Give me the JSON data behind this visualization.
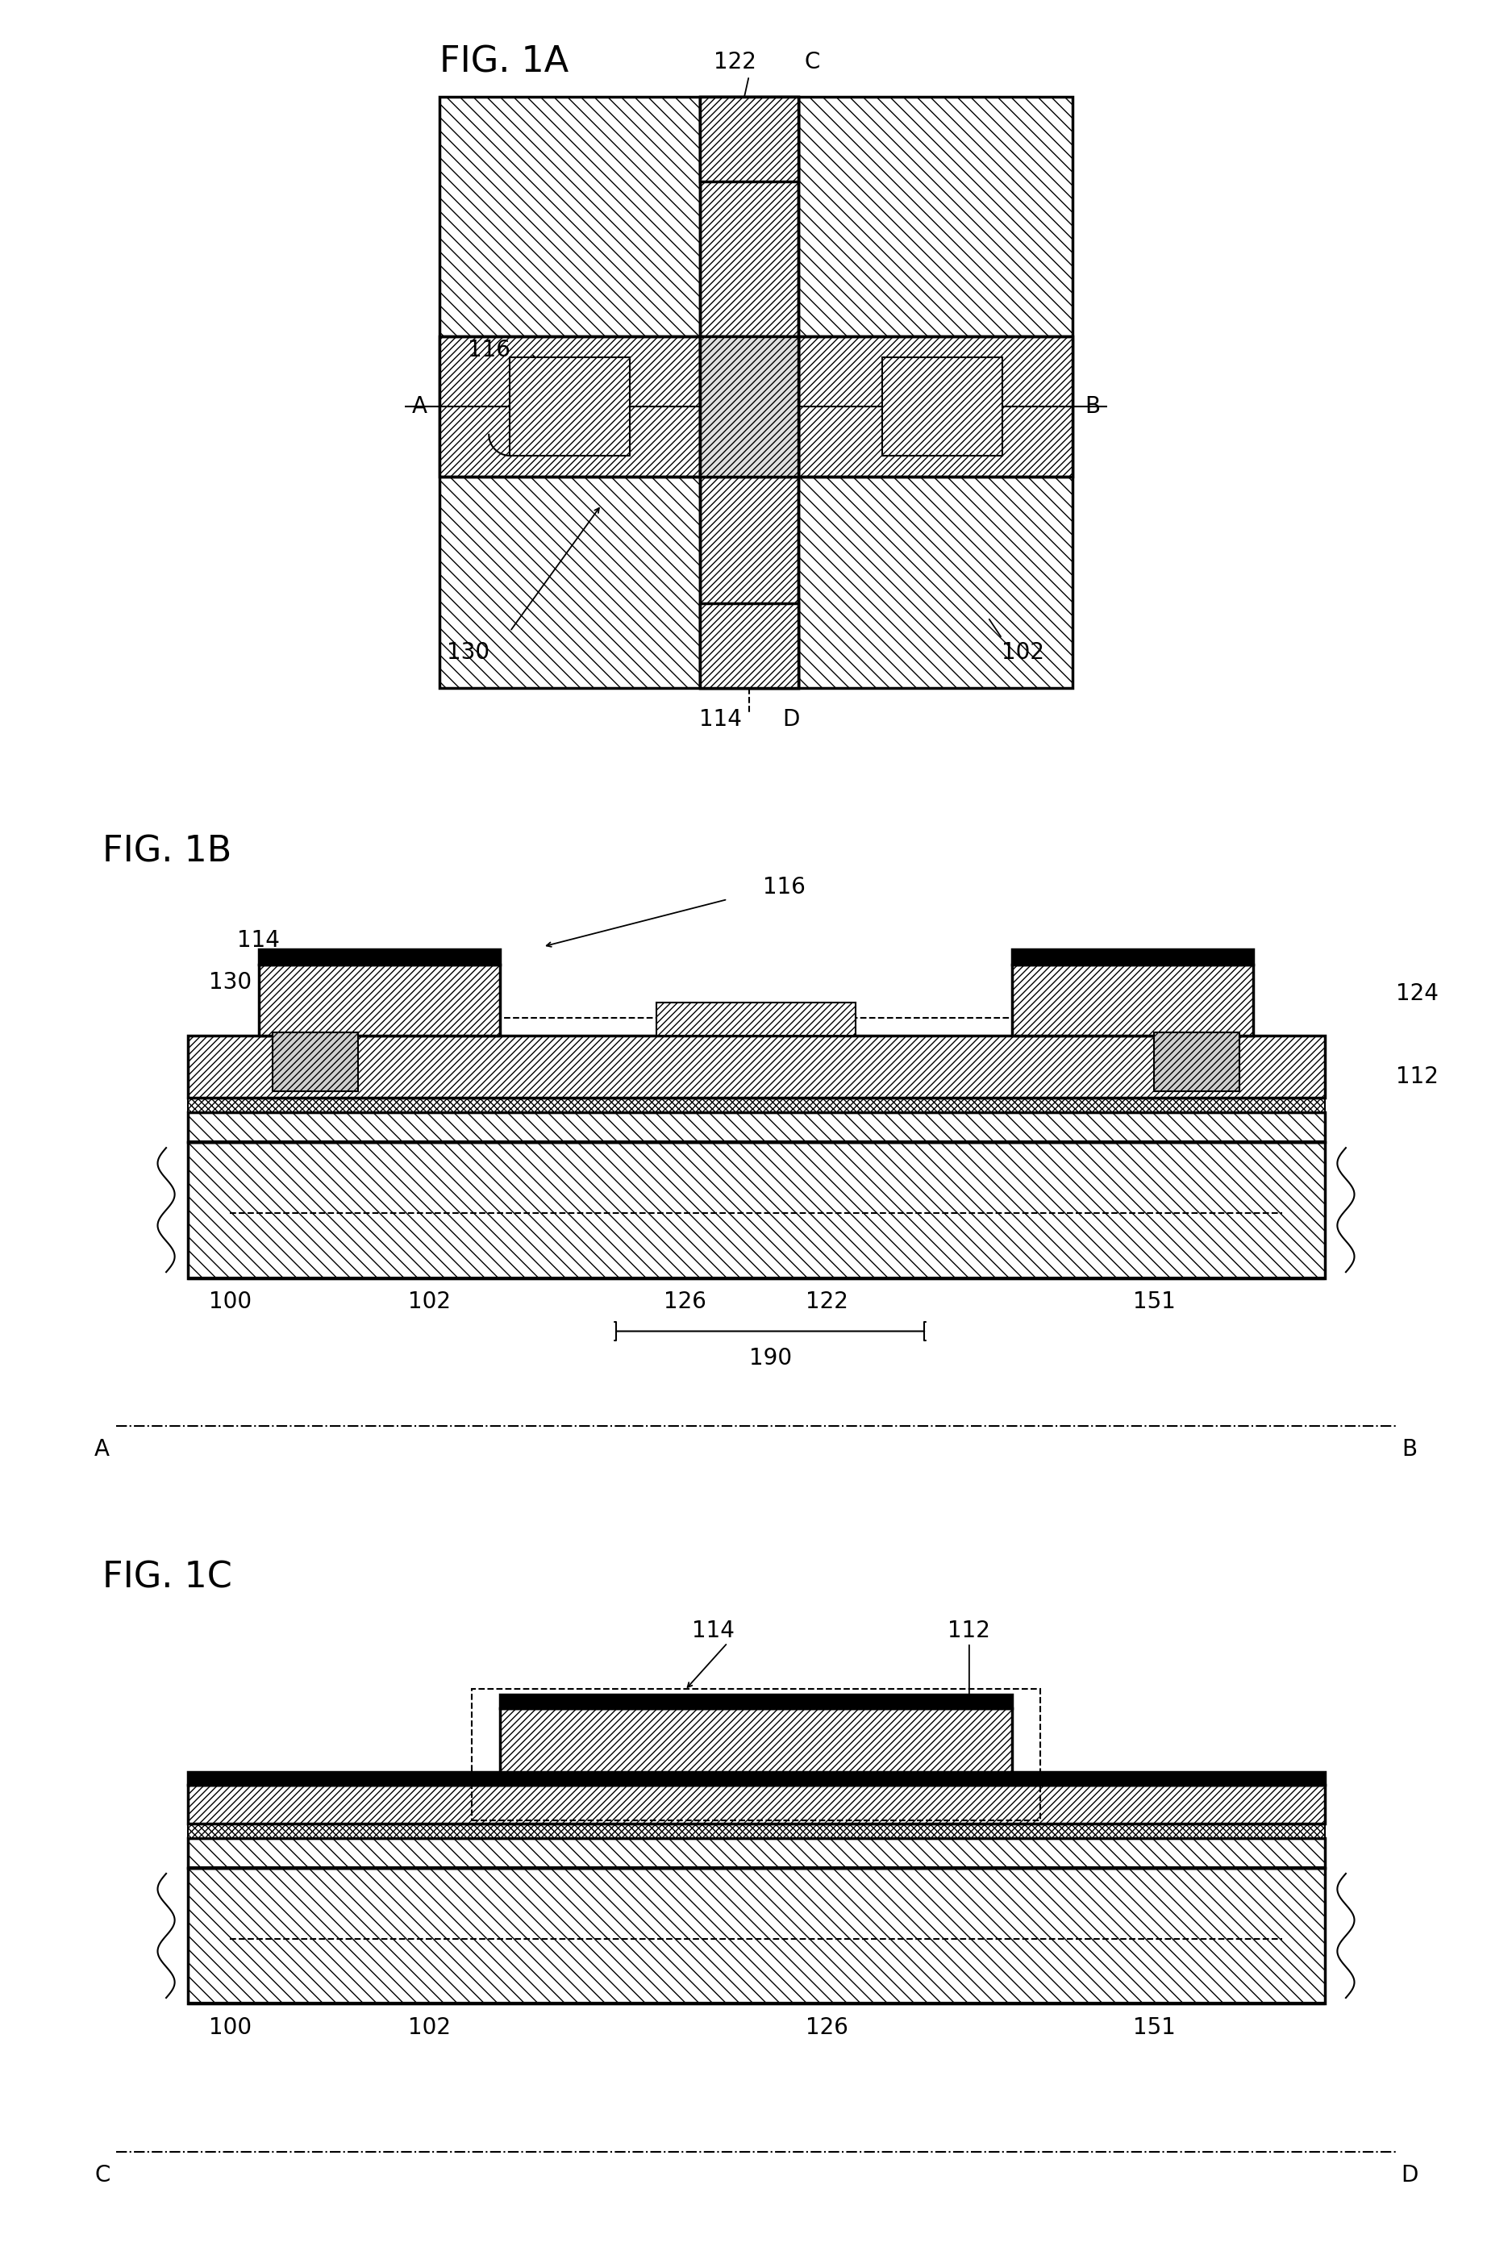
{
  "bg_color": "#ffffff",
  "fig1a_title": "FIG. 1A",
  "fig1b_title": "FIG. 1B",
  "fig1c_title": "FIG. 1C",
  "font_size_title": 32,
  "font_size_ref": 20,
  "lw_thick": 2.5,
  "lw_thin": 1.5
}
